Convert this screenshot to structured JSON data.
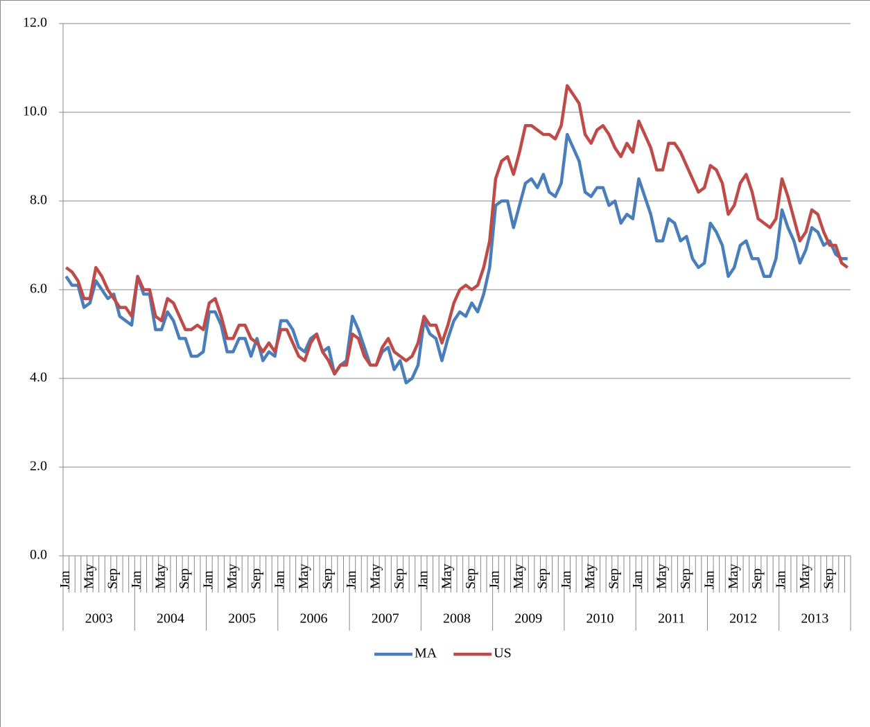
{
  "chart_data": {
    "type": "line",
    "categories": [
      "Jan",
      null,
      null,
      null,
      "May",
      null,
      null,
      null,
      "Sep",
      null,
      null,
      null,
      "Jan",
      null,
      null,
      null,
      "May",
      null,
      null,
      null,
      "Sep",
      null,
      null,
      null,
      "Jan",
      null,
      null,
      null,
      "May",
      null,
      null,
      null,
      "Sep",
      null,
      null,
      null,
      "Jan",
      null,
      null,
      null,
      "May",
      null,
      null,
      null,
      "Sep",
      null,
      null,
      null,
      "Jan",
      null,
      null,
      null,
      "May",
      null,
      null,
      null,
      "Sep",
      null,
      null,
      null,
      "Jan",
      null,
      null,
      null,
      "May",
      null,
      null,
      null,
      "Sep",
      null,
      null,
      null,
      "Jan",
      null,
      null,
      null,
      "May",
      null,
      null,
      null,
      "Sep",
      null,
      null,
      null,
      "Jan",
      null,
      null,
      null,
      "May",
      null,
      null,
      null,
      "Sep",
      null,
      null,
      null,
      "Jan",
      null,
      null,
      null,
      "May",
      null,
      null,
      null,
      "Sep",
      null,
      null,
      null,
      "Jan",
      null,
      null,
      null,
      "May",
      null,
      null,
      null,
      "Sep",
      null,
      null,
      null,
      "Jan",
      null,
      null,
      null,
      "May",
      null,
      null,
      null,
      "Sep",
      null,
      null,
      null
    ],
    "years": [
      "2003",
      "2004",
      "2005",
      "2006",
      "2007",
      "2008",
      "2009",
      "2010",
      "2011",
      "2012",
      "2013"
    ],
    "series": [
      {
        "name": "MA",
        "color": "#4a7ebb",
        "values": [
          6.3,
          6.1,
          6.1,
          5.6,
          5.7,
          6.2,
          6.0,
          5.8,
          5.9,
          5.4,
          5.3,
          5.2,
          6.3,
          5.9,
          5.9,
          5.1,
          5.1,
          5.5,
          5.3,
          4.9,
          4.9,
          4.5,
          4.5,
          4.6,
          5.5,
          5.5,
          5.2,
          4.6,
          4.6,
          4.9,
          4.9,
          4.5,
          4.9,
          4.4,
          4.6,
          4.5,
          5.3,
          5.3,
          5.1,
          4.7,
          4.6,
          4.9,
          5.0,
          4.6,
          4.7,
          4.1,
          4.3,
          4.4,
          5.4,
          5.1,
          4.7,
          4.3,
          4.3,
          4.6,
          4.7,
          4.2,
          4.4,
          3.9,
          4.0,
          4.3,
          5.3,
          5.0,
          4.9,
          4.4,
          4.9,
          5.3,
          5.5,
          5.4,
          5.7,
          5.5,
          5.9,
          6.5,
          7.9,
          8.0,
          8.0,
          7.4,
          7.9,
          8.4,
          8.5,
          8.3,
          8.6,
          8.2,
          8.1,
          8.4,
          9.5,
          9.2,
          8.9,
          8.2,
          8.1,
          8.3,
          8.3,
          7.9,
          8.0,
          7.5,
          7.7,
          7.6,
          8.5,
          8.1,
          7.7,
          7.1,
          7.1,
          7.6,
          7.5,
          7.1,
          7.2,
          6.7,
          6.5,
          6.6,
          7.5,
          7.3,
          7.0,
          6.3,
          6.5,
          7.0,
          7.1,
          6.7,
          6.7,
          6.3,
          6.3,
          6.7,
          7.8,
          7.4,
          7.1,
          6.6,
          6.9,
          7.4,
          7.3,
          7.0,
          7.1,
          6.8,
          6.7,
          6.7
        ]
      },
      {
        "name": "US",
        "color": "#be4b48",
        "values": [
          6.5,
          6.4,
          6.2,
          5.8,
          5.8,
          6.5,
          6.3,
          6.0,
          5.8,
          5.6,
          5.6,
          5.4,
          6.3,
          6.0,
          6.0,
          5.4,
          5.3,
          5.8,
          5.7,
          5.4,
          5.1,
          5.1,
          5.2,
          5.1,
          5.7,
          5.8,
          5.4,
          4.9,
          4.9,
          5.2,
          5.2,
          4.9,
          4.8,
          4.6,
          4.8,
          4.6,
          5.1,
          5.1,
          4.8,
          4.5,
          4.4,
          4.8,
          5.0,
          4.6,
          4.4,
          4.1,
          4.3,
          4.3,
          5.0,
          4.9,
          4.5,
          4.3,
          4.3,
          4.7,
          4.9,
          4.6,
          4.5,
          4.4,
          4.5,
          4.8,
          5.4,
          5.2,
          5.2,
          4.8,
          5.2,
          5.7,
          6.0,
          6.1,
          6.0,
          6.1,
          6.5,
          7.1,
          8.5,
          8.9,
          9.0,
          8.6,
          9.1,
          9.7,
          9.7,
          9.6,
          9.5,
          9.5,
          9.4,
          9.7,
          10.6,
          10.4,
          10.2,
          9.5,
          9.3,
          9.6,
          9.7,
          9.5,
          9.2,
          9.0,
          9.3,
          9.1,
          9.8,
          9.5,
          9.2,
          8.7,
          8.7,
          9.3,
          9.3,
          9.1,
          8.8,
          8.5,
          8.2,
          8.3,
          8.8,
          8.7,
          8.4,
          7.7,
          7.9,
          8.4,
          8.6,
          8.2,
          7.6,
          7.5,
          7.4,
          7.6,
          8.5,
          8.1,
          7.6,
          7.1,
          7.3,
          7.8,
          7.7,
          7.3,
          7.0,
          7.0,
          6.6,
          6.5
        ]
      }
    ],
    "ylim": [
      0,
      12
    ],
    "yticks": [
      {
        "value": 0,
        "label": "0.0"
      },
      {
        "value": 2,
        "label": "2.0"
      },
      {
        "value": 4,
        "label": "4.0"
      },
      {
        "value": 6,
        "label": "6.0"
      },
      {
        "value": 8,
        "label": "8.0"
      },
      {
        "value": 10,
        "label": "10.0"
      },
      {
        "value": 12,
        "label": "12.0"
      }
    ],
    "grid": true,
    "legend": "bottom"
  }
}
